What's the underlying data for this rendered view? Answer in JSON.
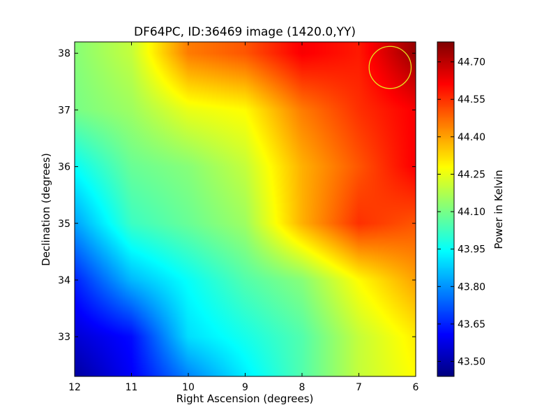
{
  "chart_data": {
    "type": "heatmap",
    "title": "DF64PC, ID:36469 image (1420.0,YY)",
    "xlabel": "Right Ascension (degrees)",
    "ylabel": "Declination (degrees)",
    "xlim": [
      12,
      6
    ],
    "ylim": [
      32.3,
      38.2
    ],
    "x_ticks": [
      "12",
      "11",
      "10",
      "9",
      "8",
      "7",
      "6"
    ],
    "x_tick_values": [
      12,
      11,
      10,
      9,
      8,
      7,
      6
    ],
    "y_ticks": [
      "33",
      "34",
      "35",
      "36",
      "37",
      "38"
    ],
    "y_tick_values": [
      33,
      34,
      35,
      36,
      37,
      38
    ],
    "colorbar": {
      "label": "Power in Kelvin",
      "range": [
        43.44,
        44.78
      ],
      "ticks": [
        "43.50",
        "43.65",
        "43.80",
        "43.95",
        "44.10",
        "44.25",
        "44.40",
        "44.55",
        "44.70"
      ],
      "tick_values": [
        43.5,
        43.65,
        43.8,
        43.95,
        44.1,
        44.25,
        44.4,
        44.55,
        44.7
      ],
      "colormap": "jet"
    },
    "grid_x": [
      12,
      11,
      10,
      9,
      8,
      7,
      6
    ],
    "grid_y": [
      38,
      37,
      36,
      35,
      34,
      33,
      32.3
    ],
    "values": [
      [
        44.12,
        44.2,
        44.45,
        44.5,
        44.62,
        44.58,
        44.75
      ],
      [
        44.1,
        44.15,
        44.25,
        44.28,
        44.45,
        44.55,
        44.62
      ],
      [
        43.95,
        44.08,
        44.12,
        44.2,
        44.38,
        44.5,
        44.62
      ],
      [
        43.82,
        44.02,
        44.08,
        44.15,
        44.38,
        44.55,
        44.5
      ],
      [
        43.65,
        43.85,
        43.95,
        44.05,
        44.12,
        44.28,
        44.4
      ],
      [
        43.55,
        43.62,
        43.9,
        43.97,
        44.05,
        44.2,
        44.3
      ],
      [
        43.48,
        43.6,
        43.78,
        43.92,
        44.05,
        44.2,
        44.28
      ]
    ],
    "annotation": {
      "shape": "circle",
      "color": "#e6e620",
      "center": [
        6.45,
        37.75
      ],
      "radius_deg": 0.37
    },
    "grid": false
  }
}
